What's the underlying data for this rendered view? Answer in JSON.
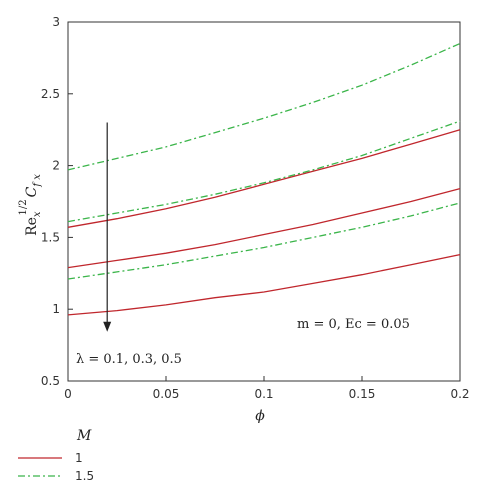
{
  "chart_data": {
    "type": "line",
    "xlabel": "ϕ",
    "ylabel_main": "Re",
    "ylabel_sub": "x",
    "ylabel_sup": "1/2",
    "ylabel_rest": "C",
    "ylabel_sub2": "f x",
    "xlim": [
      0,
      0.2
    ],
    "ylim": [
      0.5,
      3
    ],
    "xticks": [
      0,
      0.05,
      0.1,
      0.15,
      0.2
    ],
    "xtick_labels": [
      "0",
      "0.05",
      "0.1",
      "0.15",
      "0.2"
    ],
    "yticks": [
      0.5,
      1,
      1.5,
      2,
      2.5,
      3
    ],
    "ytick_labels": [
      "0.5",
      "1",
      "1.5",
      "2",
      "2.5",
      "3"
    ],
    "x": [
      0,
      0.025,
      0.05,
      0.075,
      0.1,
      0.125,
      0.15,
      0.175,
      0.2
    ],
    "series": [
      {
        "name": "1",
        "group": "λ = 0.1",
        "color": "#c0272d",
        "dash": "solid",
        "values": [
          1.57,
          1.63,
          1.7,
          1.78,
          1.87,
          1.96,
          2.05,
          2.15,
          2.25
        ]
      },
      {
        "name": "1",
        "group": "λ = 0.3",
        "color": "#c0272d",
        "dash": "solid",
        "values": [
          1.29,
          1.34,
          1.39,
          1.45,
          1.52,
          1.59,
          1.67,
          1.75,
          1.84
        ]
      },
      {
        "name": "1",
        "group": "λ = 0.5",
        "color": "#c0272d",
        "dash": "solid",
        "values": [
          0.96,
          0.99,
          1.03,
          1.08,
          1.12,
          1.18,
          1.24,
          1.31,
          1.38
        ]
      },
      {
        "name": "1.5",
        "group": "λ = 0.1",
        "color": "#3bb54a",
        "dash": "dashdot",
        "values": [
          1.97,
          2.05,
          2.13,
          2.23,
          2.33,
          2.44,
          2.56,
          2.7,
          2.85
        ]
      },
      {
        "name": "1.5",
        "group": "λ = 0.3",
        "color": "#3bb54a",
        "dash": "dashdot",
        "values": [
          1.61,
          1.67,
          1.73,
          1.8,
          1.88,
          1.97,
          2.07,
          2.19,
          2.31
        ]
      },
      {
        "name": "1.5",
        "group": "λ = 0.5",
        "color": "#3bb54a",
        "dash": "dashdot",
        "values": [
          1.21,
          1.26,
          1.31,
          1.37,
          1.43,
          1.5,
          1.57,
          1.65,
          1.74
        ]
      }
    ],
    "legend": {
      "title": "M",
      "placement": "bottom-left-below",
      "entries": [
        {
          "label": "1",
          "color": "#c0272d",
          "dash": "solid"
        },
        {
          "label": "1.5",
          "color": "#3bb54a",
          "dash": "dashdot"
        }
      ]
    },
    "annotations": {
      "arrow_label": "λ = 0.1, 0.3, 0.5",
      "arrow_x": 0.02,
      "arrow_y_start": 2.3,
      "arrow_y_end": 0.85,
      "params_label": "m = 0, Ec = 0.05"
    },
    "grid": false
  }
}
